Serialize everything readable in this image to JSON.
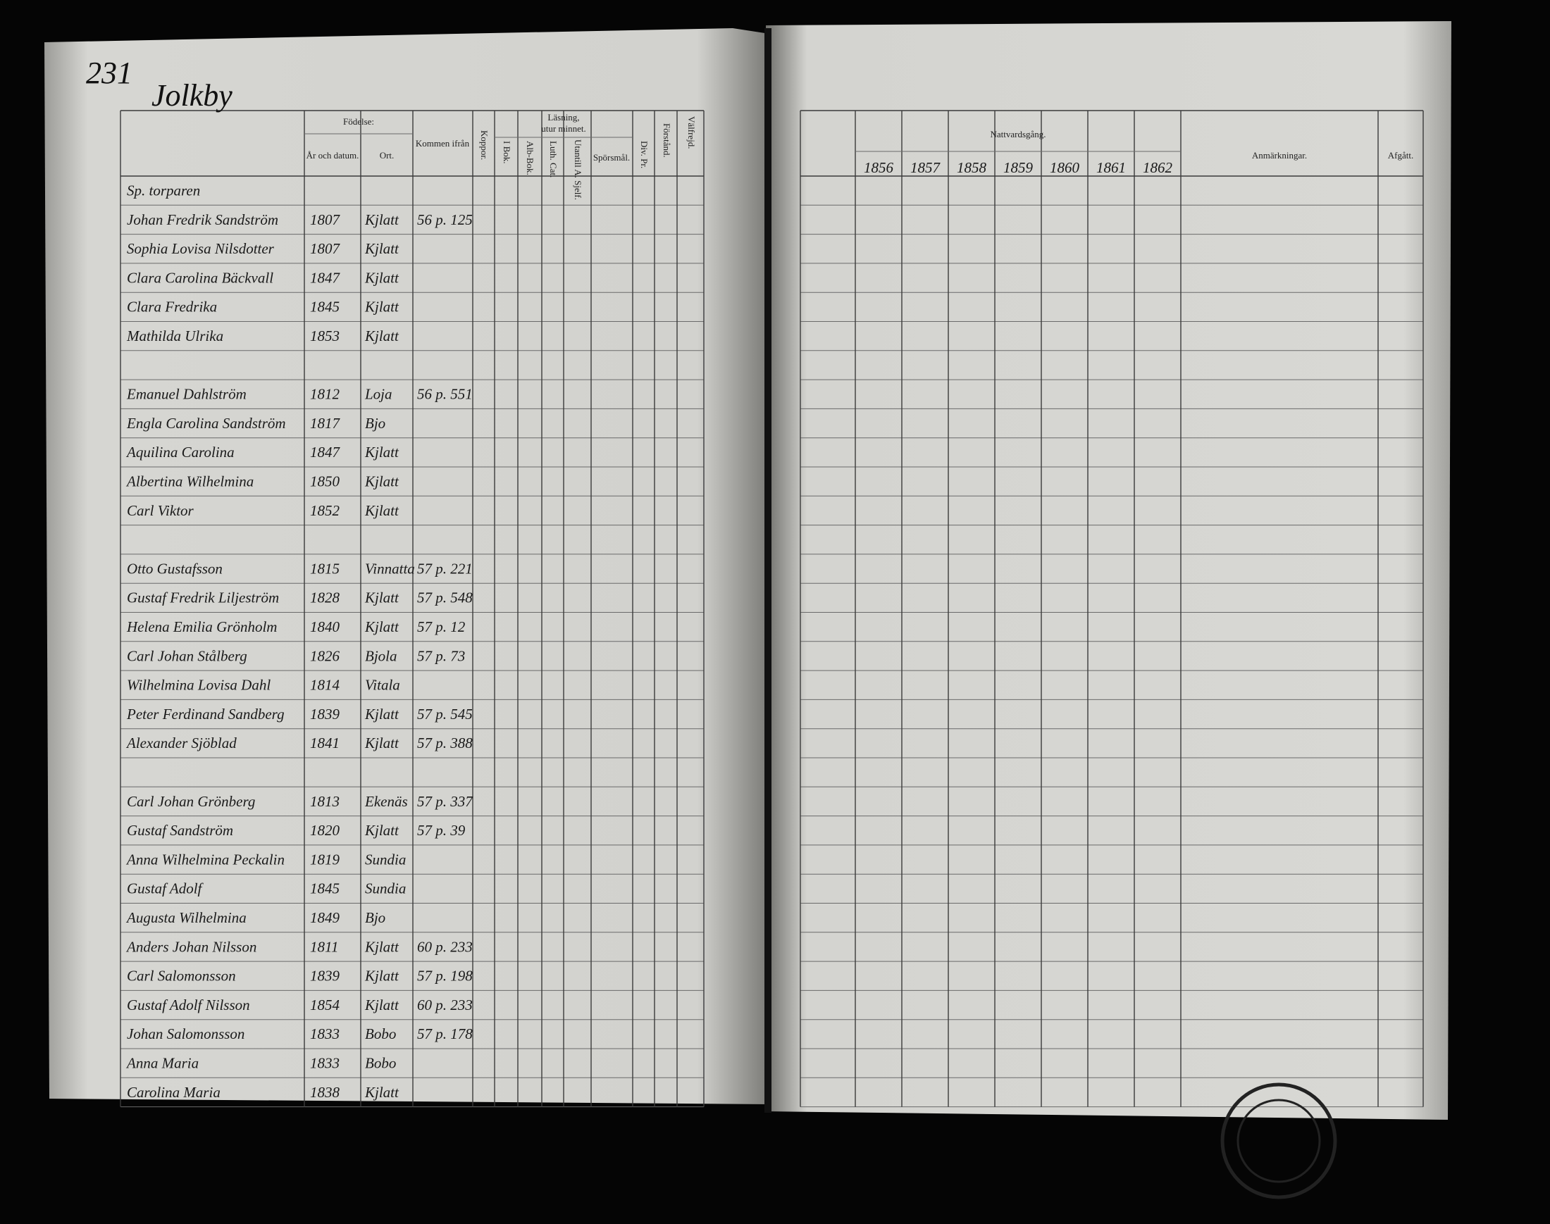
{
  "page_number": "231",
  "title": "Jolkby",
  "left_headers": {
    "fodelse": "Födelse:",
    "ar": "År och datum.",
    "ort": "Ort.",
    "kommen": "Kommen ifrån",
    "koppor": "Koppor.",
    "lasning": "Läsning,",
    "utur": "utur minnet.",
    "i_bok": "I Bok.",
    "alb_bok": "Alb-Bok.",
    "luth_cat": "Luth. Cat.",
    "utantill": "Utantill A. Sjelf.",
    "sporsmal": "Spörsmål.",
    "div_pr": "Div. Pr.",
    "forstand": "Förstånd.",
    "valfrejd": "Välfrejd."
  },
  "right_headers": {
    "nattvardsgang": "Nattvardsgång.",
    "years": [
      "1856",
      "1857",
      "1858",
      "1859",
      "1860",
      "1861",
      "1862"
    ],
    "anmarkningar": "Anmärkningar.",
    "afgatt": "Afgått."
  },
  "rows": [
    {
      "name": "Sp. torparen"
    },
    {
      "name": "Johan Fredrik Sandström",
      "year": "1807",
      "place": "Kjlatt",
      "from": "56 p. 125"
    },
    {
      "name": "Sophia Lovisa Nilsdotter",
      "year": "1807",
      "place": "Kjlatt"
    },
    {
      "name": "Clara Carolina Bäckvall",
      "year": "1847",
      "place": "Kjlatt"
    },
    {
      "name": "Clara Fredrika",
      "year": "1845",
      "place": "Kjlatt"
    },
    {
      "name": "Mathilda Ulrika",
      "year": "1853",
      "place": "Kjlatt"
    },
    null,
    {
      "name": "Emanuel Dahlström",
      "year": "1812",
      "place": "Loja",
      "from": "56 p. 551"
    },
    {
      "name": "Engla Carolina Sandström",
      "year": "1817",
      "place": "Bjo"
    },
    {
      "name": "Aquilina Carolina",
      "year": "1847",
      "place": "Kjlatt"
    },
    {
      "name": "Albertina Wilhelmina",
      "year": "1850",
      "place": "Kjlatt"
    },
    {
      "name": "Carl Viktor",
      "year": "1852",
      "place": "Kjlatt"
    },
    null,
    {
      "name": "Otto Gustafsson",
      "year": "1815",
      "place": "Vinnatta",
      "from": "57 p. 221"
    },
    {
      "name": "Gustaf Fredrik Liljeström",
      "year": "1828",
      "place": "Kjlatt",
      "from": "57 p. 548"
    },
    {
      "name": "Helena Emilia Grönholm",
      "year": "1840",
      "place": "Kjlatt",
      "from": "57 p. 12"
    },
    {
      "name": "Carl Johan Stålberg",
      "year": "1826",
      "place": "Bjola",
      "from": "57 p. 73"
    },
    {
      "name": "Wilhelmina Lovisa Dahl",
      "year": "1814",
      "place": "Vitala"
    },
    {
      "name": "Peter Ferdinand Sandberg",
      "year": "1839",
      "place": "Kjlatt",
      "from": "57 p. 545"
    },
    {
      "name": "Alexander Sjöblad",
      "year": "1841",
      "place": "Kjlatt",
      "from": "57 p. 388"
    },
    null,
    {
      "name": "Carl Johan Grönberg",
      "year": "1813",
      "place": "Ekenäs",
      "from": "57 p. 337"
    },
    {
      "name": "Gustaf Sandström",
      "year": "1820",
      "place": "Kjlatt",
      "from": "57 p. 39"
    },
    {
      "name": "Anna Wilhelmina Peckalin",
      "year": "1819",
      "place": "Sundia"
    },
    {
      "name": "Gustaf Adolf",
      "year": "1845",
      "place": "Sundia"
    },
    {
      "name": "Augusta Wilhelmina",
      "year": "1849",
      "place": "Bjo"
    },
    {
      "name": "Anders Johan Nilsson",
      "year": "1811",
      "place": "Kjlatt",
      "from": "60 p. 233"
    },
    {
      "name": "Carl Salomonsson",
      "year": "1839",
      "place": "Kjlatt",
      "from": "57 p. 198"
    },
    {
      "name": "Gustaf Adolf Nilsson",
      "year": "1854",
      "place": "Kjlatt",
      "from": "60 p. 233"
    },
    {
      "name": "Johan Salomonsson",
      "year": "1833",
      "place": "Bobo",
      "from": "57 p. 178"
    },
    {
      "name": "Anna Maria",
      "year": "1833",
      "place": "Bobo"
    },
    {
      "name": "Carolina Maria",
      "year": "1838",
      "place": "Kjlatt"
    }
  ]
}
